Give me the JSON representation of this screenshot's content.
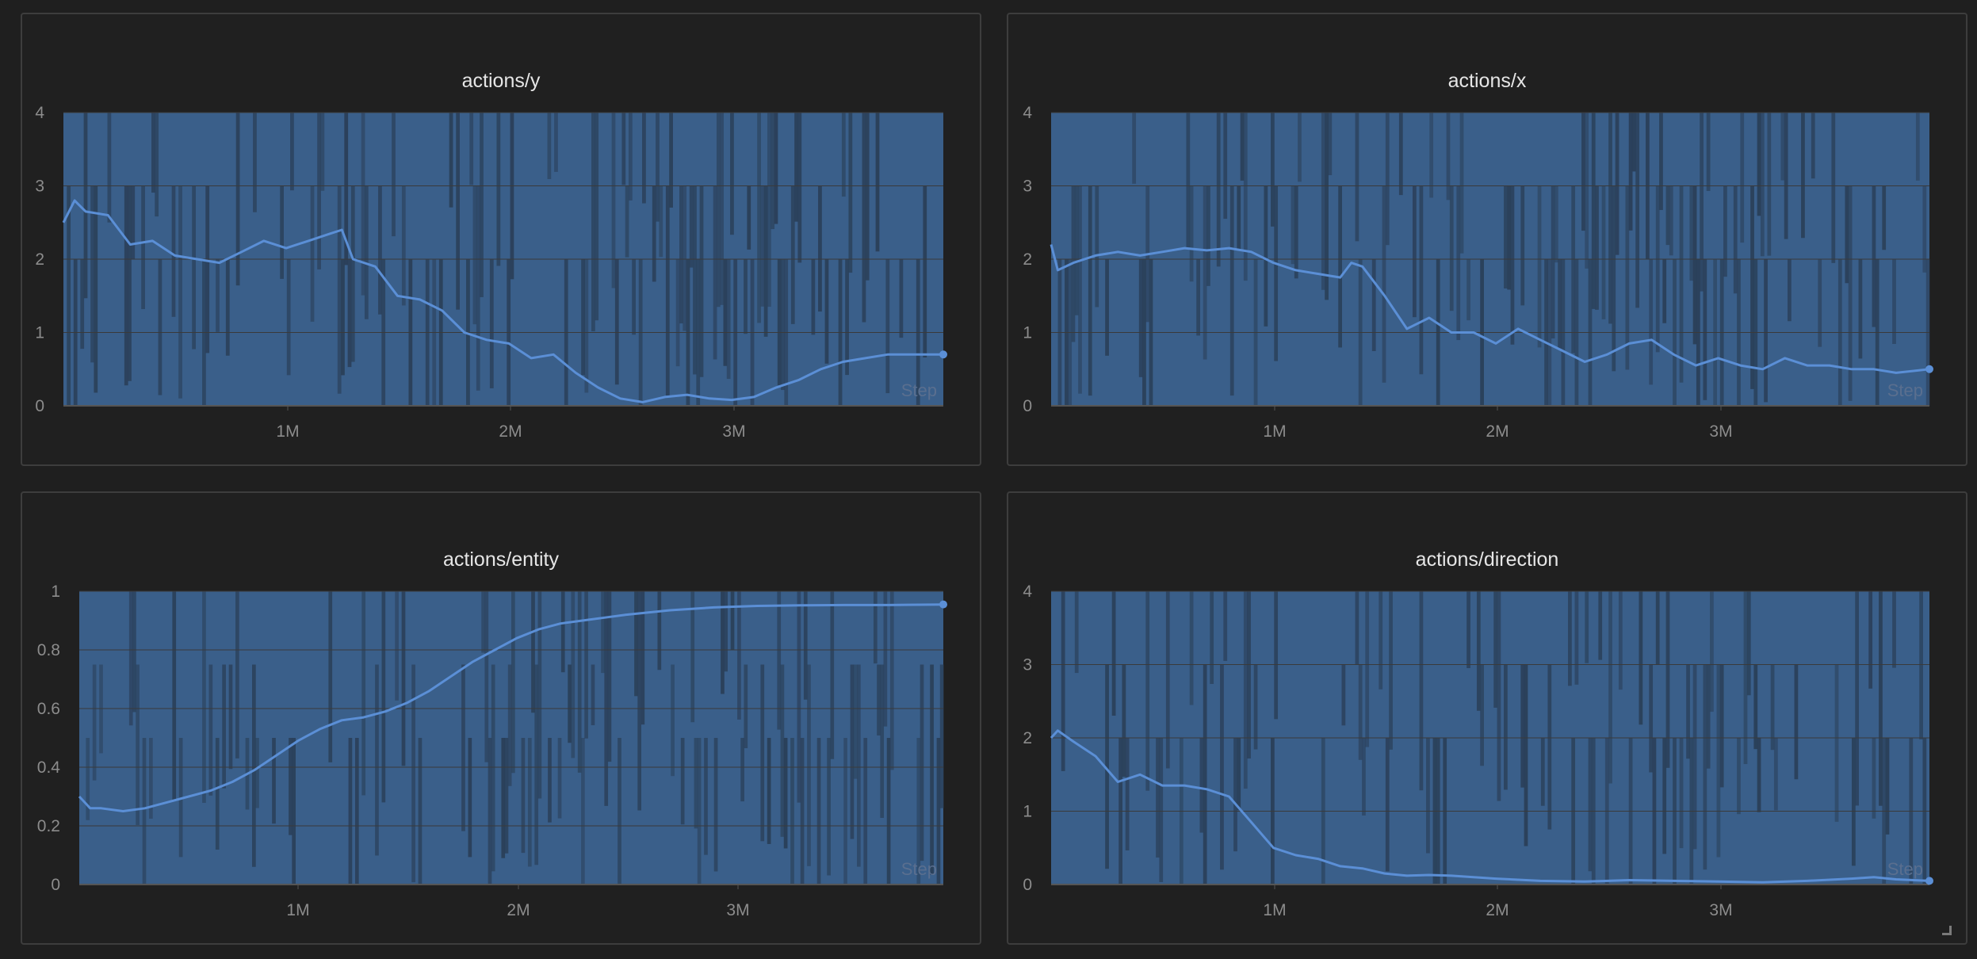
{
  "colors": {
    "background": "#1f1f1f",
    "panel_border": "#3d3d3d",
    "series_line": "#5b8fd6",
    "band_fill": "#3f6b9e",
    "band_dark": "#2a3f58",
    "grid": "#3a3a3a"
  },
  "panels": [
    {
      "title": "actions/y"
    },
    {
      "title": "actions/x"
    },
    {
      "title": "actions/entity"
    },
    {
      "title": "actions/direction"
    }
  ],
  "chart_data": [
    {
      "type": "line",
      "title": "actions/y",
      "xlabel": "Step",
      "ylabel": "",
      "xlim": [
        0,
        3950000
      ],
      "ylim": [
        0,
        4
      ],
      "x_ticks": [
        "1M",
        "2M",
        "3M"
      ],
      "y_ticks": [
        "0",
        "1",
        "2",
        "3",
        "4"
      ],
      "grid": true,
      "x": [
        0,
        50000,
        100000,
        200000,
        300000,
        400000,
        500000,
        600000,
        700000,
        800000,
        900000,
        1000000,
        1100000,
        1200000,
        1250000,
        1300000,
        1400000,
        1500000,
        1600000,
        1700000,
        1800000,
        1900000,
        2000000,
        2100000,
        2200000,
        2300000,
        2400000,
        2500000,
        2600000,
        2700000,
        2800000,
        2900000,
        3000000,
        3100000,
        3200000,
        3300000,
        3400000,
        3500000,
        3600000,
        3700000,
        3800000,
        3950000
      ],
      "series": [
        {
          "values": [
            2.5,
            2.8,
            2.65,
            2.6,
            2.2,
            2.25,
            2.05,
            2.0,
            1.95,
            2.1,
            2.25,
            2.15,
            2.25,
            2.35,
            2.4,
            2.0,
            1.9,
            1.5,
            1.45,
            1.3,
            1.0,
            0.9,
            0.85,
            0.65,
            0.7,
            0.45,
            0.25,
            0.1,
            0.05,
            0.12,
            0.15,
            0.1,
            0.08,
            0.12,
            0.25,
            0.35,
            0.5,
            0.6,
            0.65,
            0.7,
            0.7,
            0.7
          ]
        }
      ]
    },
    {
      "type": "line",
      "title": "actions/x",
      "xlabel": "Step",
      "ylabel": "",
      "xlim": [
        0,
        3950000
      ],
      "ylim": [
        0,
        4
      ],
      "x_ticks": [
        "1M",
        "2M",
        "3M"
      ],
      "y_ticks": [
        "0",
        "1",
        "2",
        "3",
        "4"
      ],
      "grid": true,
      "x": [
        0,
        30000,
        100000,
        200000,
        300000,
        400000,
        500000,
        600000,
        700000,
        800000,
        900000,
        1000000,
        1100000,
        1200000,
        1300000,
        1350000,
        1400000,
        1500000,
        1600000,
        1700000,
        1800000,
        1900000,
        2000000,
        2100000,
        2200000,
        2300000,
        2400000,
        2500000,
        2600000,
        2700000,
        2800000,
        2900000,
        3000000,
        3100000,
        3200000,
        3300000,
        3400000,
        3500000,
        3600000,
        3700000,
        3800000,
        3950000
      ],
      "series": [
        {
          "values": [
            2.2,
            1.85,
            1.95,
            2.05,
            2.1,
            2.05,
            2.1,
            2.15,
            2.12,
            2.15,
            2.1,
            1.95,
            1.85,
            1.8,
            1.75,
            1.95,
            1.9,
            1.5,
            1.05,
            1.2,
            1.0,
            1.0,
            0.85,
            1.05,
            0.9,
            0.75,
            0.6,
            0.7,
            0.85,
            0.9,
            0.7,
            0.55,
            0.65,
            0.55,
            0.5,
            0.65,
            0.55,
            0.55,
            0.5,
            0.5,
            0.45,
            0.5
          ]
        }
      ]
    },
    {
      "type": "line",
      "title": "actions/entity",
      "xlabel": "Step",
      "ylabel": "",
      "xlim": [
        0,
        3950000
      ],
      "ylim": [
        0,
        1
      ],
      "x_ticks": [
        "1M",
        "2M",
        "3M"
      ],
      "y_ticks": [
        "0",
        "0.2",
        "0.4",
        "0.6",
        "0.8",
        "1"
      ],
      "grid": true,
      "x": [
        0,
        50000,
        100000,
        200000,
        300000,
        400000,
        500000,
        600000,
        700000,
        800000,
        900000,
        1000000,
        1100000,
        1200000,
        1300000,
        1400000,
        1500000,
        1600000,
        1700000,
        1800000,
        1900000,
        2000000,
        2100000,
        2200000,
        2300000,
        2400000,
        2500000,
        2700000,
        2900000,
        3100000,
        3300000,
        3500000,
        3700000,
        3950000
      ],
      "series": [
        {
          "values": [
            0.3,
            0.26,
            0.26,
            0.25,
            0.26,
            0.28,
            0.3,
            0.32,
            0.35,
            0.39,
            0.44,
            0.49,
            0.53,
            0.56,
            0.57,
            0.59,
            0.62,
            0.66,
            0.71,
            0.76,
            0.8,
            0.84,
            0.87,
            0.89,
            0.9,
            0.91,
            0.92,
            0.935,
            0.945,
            0.95,
            0.952,
            0.953,
            0.953,
            0.955
          ]
        }
      ]
    },
    {
      "type": "line",
      "title": "actions/direction",
      "xlabel": "Step",
      "ylabel": "",
      "xlim": [
        0,
        3950000
      ],
      "ylim": [
        0,
        4
      ],
      "x_ticks": [
        "1M",
        "2M",
        "3M"
      ],
      "y_ticks": [
        "0",
        "1",
        "2",
        "3",
        "4"
      ],
      "grid": true,
      "x": [
        0,
        30000,
        100000,
        200000,
        300000,
        400000,
        500000,
        600000,
        700000,
        800000,
        900000,
        1000000,
        1100000,
        1200000,
        1300000,
        1400000,
        1500000,
        1600000,
        1700000,
        1800000,
        2000000,
        2200000,
        2400000,
        2600000,
        2800000,
        3000000,
        3200000,
        3400000,
        3600000,
        3700000,
        3800000,
        3950000
      ],
      "series": [
        {
          "values": [
            2.0,
            2.1,
            1.95,
            1.75,
            1.4,
            1.5,
            1.35,
            1.35,
            1.3,
            1.2,
            0.85,
            0.5,
            0.4,
            0.35,
            0.25,
            0.22,
            0.15,
            0.12,
            0.13,
            0.12,
            0.08,
            0.05,
            0.04,
            0.06,
            0.05,
            0.04,
            0.03,
            0.05,
            0.08,
            0.1,
            0.07,
            0.05
          ]
        }
      ]
    }
  ]
}
